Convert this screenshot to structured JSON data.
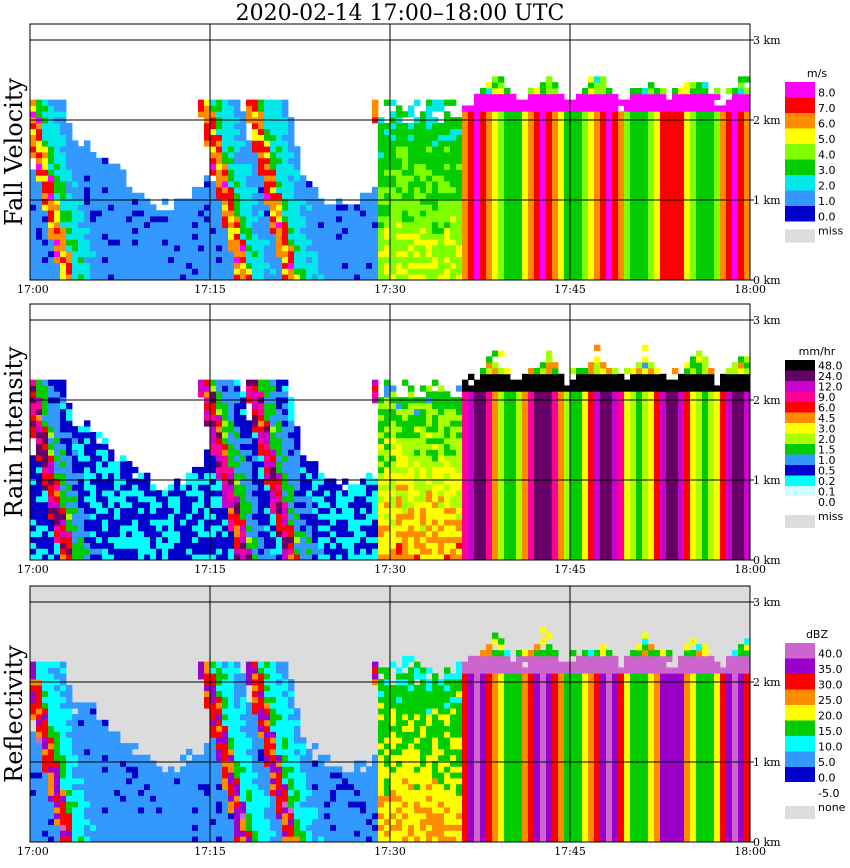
{
  "title": "2020-02-14   17:00–18:00 UTC",
  "chart_data": [
    {
      "type": "heatmap",
      "ylabel": "Fall Velocity",
      "units": "m/s",
      "xticks": [
        "17:00",
        "17:15",
        "17:30",
        "17:45",
        "18:00"
      ],
      "yticks": [
        "0 km",
        "1 km",
        "2 km",
        "3 km"
      ],
      "ylim_km": [
        0,
        3.2
      ],
      "legend": [
        {
          "label": "8.0",
          "color": "#ff00ff"
        },
        {
          "label": "7.0",
          "color": "#ff0000"
        },
        {
          "label": "6.0",
          "color": "#ff8c00"
        },
        {
          "label": "5.0",
          "color": "#ffff00"
        },
        {
          "label": "4.0",
          "color": "#7fff00"
        },
        {
          "label": "3.0",
          "color": "#00cc00"
        },
        {
          "label": "2.0",
          "color": "#00e8e8"
        },
        {
          "label": "1.0",
          "color": "#3399ff"
        },
        {
          "label": "0.0",
          "color": "#0000cc"
        }
      ],
      "missing_label": "miss"
    },
    {
      "type": "heatmap",
      "ylabel": "Rain Intensity",
      "units": "mm/hr",
      "xticks": [
        "17:00",
        "17:15",
        "17:30",
        "17:45",
        "18:00"
      ],
      "yticks": [
        "0 km",
        "1 km",
        "2 km",
        "3 km"
      ],
      "ylim_km": [
        0,
        3.2
      ],
      "legend": [
        {
          "label": "48.0",
          "color": "#000000"
        },
        {
          "label": "24.0",
          "color": "#660066"
        },
        {
          "label": "12.0",
          "color": "#cc00cc"
        },
        {
          "label": "9.0",
          "color": "#ff0099"
        },
        {
          "label": "6.0",
          "color": "#ff0000"
        },
        {
          "label": "4.5",
          "color": "#ff8c00"
        },
        {
          "label": "3.0",
          "color": "#ffff00"
        },
        {
          "label": "2.0",
          "color": "#aaff00"
        },
        {
          "label": "1.5",
          "color": "#00cc00"
        },
        {
          "label": "1.0",
          "color": "#3399ff"
        },
        {
          "label": "0.5",
          "color": "#0000cc"
        },
        {
          "label": "0.2",
          "color": "#00ffff"
        },
        {
          "label": "0.1",
          "color": "#ccffff"
        },
        {
          "label": "0.0",
          "color": "#ffffff"
        }
      ],
      "missing_label": "miss"
    },
    {
      "type": "heatmap",
      "ylabel": "Reflectivity",
      "units": "dBZ",
      "xticks": [
        "17:00",
        "17:15",
        "17:30",
        "17:45",
        "18:00"
      ],
      "yticks": [
        "0 km",
        "1 km",
        "2 km",
        "3 km"
      ],
      "ylim_km": [
        0,
        3.2
      ],
      "legend": [
        {
          "label": "40.0",
          "color": "#cc66cc"
        },
        {
          "label": "35.0",
          "color": "#9900cc"
        },
        {
          "label": "30.0",
          "color": "#ff0000"
        },
        {
          "label": "25.0",
          "color": "#ff8c00"
        },
        {
          "label": "20.0",
          "color": "#ffff00"
        },
        {
          "label": "15.0",
          "color": "#00cc00"
        },
        {
          "label": "10.0",
          "color": "#00ffff"
        },
        {
          "label": "5.0",
          "color": "#3399ff"
        },
        {
          "label": "0.0",
          "color": "#0000cc"
        },
        {
          "label": "-5.0",
          "color": "#ffffff"
        }
      ],
      "missing_label": "none"
    }
  ]
}
